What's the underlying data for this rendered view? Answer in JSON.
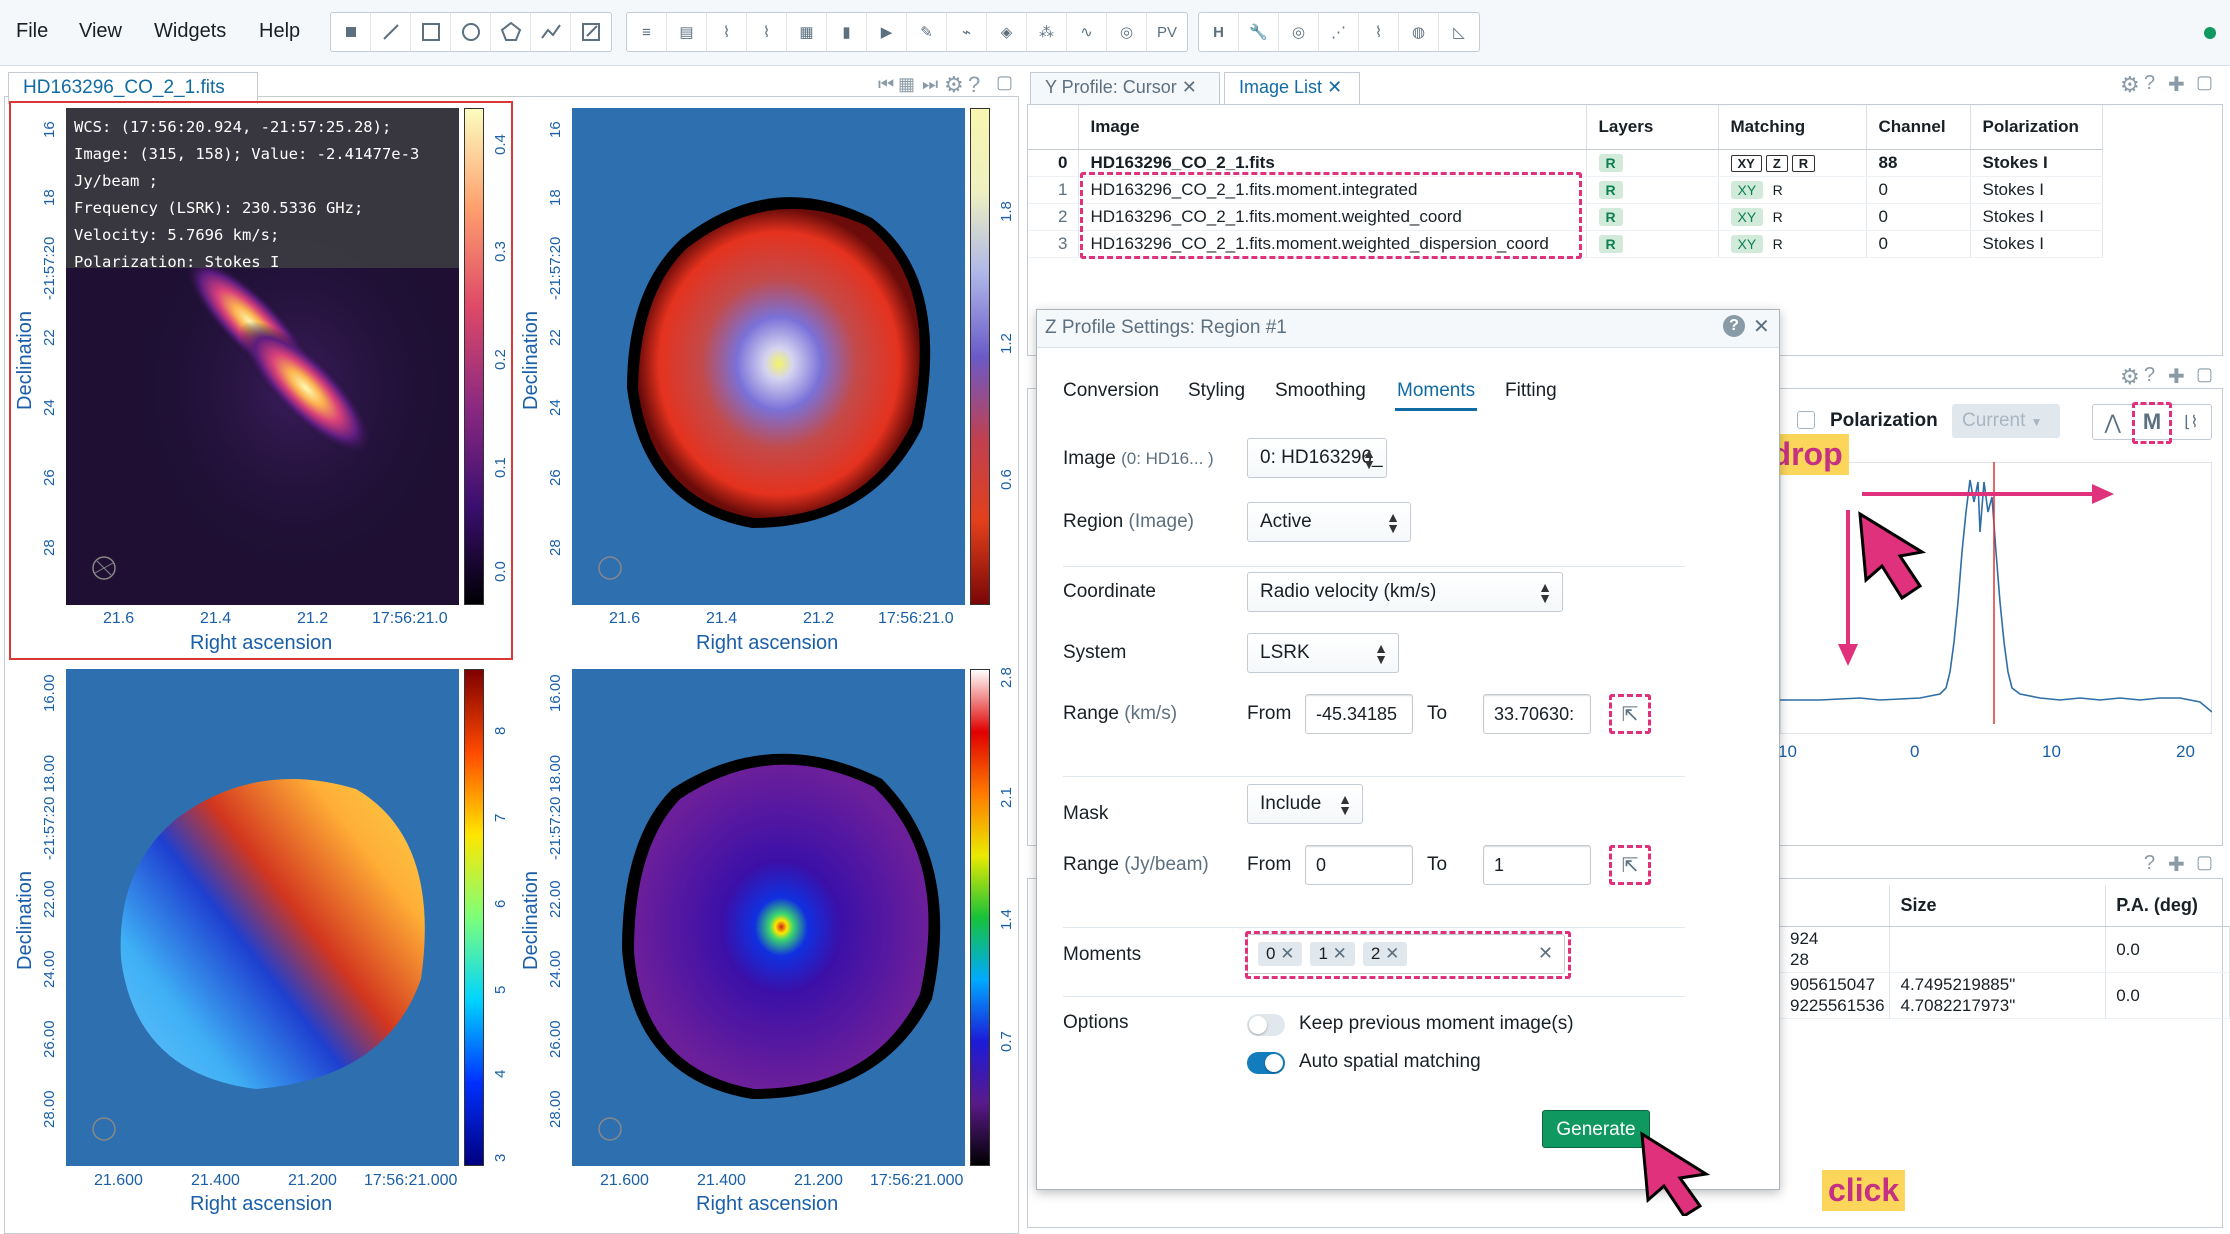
{
  "menu": {
    "file": "File",
    "view": "View",
    "widgets": "Widgets",
    "help": "Help"
  },
  "toolbar": {
    "pv_label": "PV",
    "hdr_label": "H"
  },
  "image_panel": {
    "tab_title": "HD163296_CO_2_1.fits",
    "cursor_info": {
      "line1": "WCS: (17:56:20.924, -21:57:25.28);",
      "line2": "Image: (315, 158); Value: -2.41477e-3",
      "line3": "Jy/beam ;",
      "line4": "Frequency (LSRK): 230.5336 GHz;",
      "line5": "Velocity: 5.7696 km/s;",
      "line6": "Polarization: Stokes I"
    },
    "views": [
      {
        "xlabel": "Right ascension",
        "ylabel": "Declination",
        "xticks": [
          "21.6",
          "21.4",
          "21.2",
          "17:56:21.0"
        ],
        "yticks": [
          "16",
          "18",
          "-21:57:20",
          "22",
          "24",
          "26",
          "28"
        ],
        "cbar_ticks": [
          "0.4",
          "0.3",
          "0.2",
          "0.1",
          "0.0"
        ]
      },
      {
        "xlabel": "Right ascension",
        "ylabel": "Declination",
        "xticks": [
          "21.6",
          "21.4",
          "21.2",
          "17:56:21.0"
        ],
        "yticks": [
          "16",
          "18",
          "-21:57:20",
          "22",
          "24",
          "26",
          "28"
        ],
        "cbar_ticks": [
          "1.8",
          "1.2",
          "0.6"
        ]
      },
      {
        "xlabel": "Right ascension",
        "ylabel": "Declination",
        "xticks": [
          "21.600",
          "21.400",
          "21.200",
          "17:56:21.000"
        ],
        "yticks": [
          "16.00",
          "-21:57:20 18.00",
          "22.00",
          "24.00",
          "26.00",
          "28.00"
        ],
        "cbar_ticks": [
          "8",
          "7",
          "6",
          "5",
          "4",
          "3"
        ]
      },
      {
        "xlabel": "Right ascension",
        "ylabel": "Declination",
        "xticks": [
          "21.600",
          "21.400",
          "21.200",
          "17:56:21.000"
        ],
        "yticks": [
          "16.00",
          "-21:57:20 18.00",
          "22.00",
          "24.00",
          "26.00",
          "28.00"
        ],
        "cbar_ticks": [
          "2.8",
          "2.1",
          "1.4",
          "0.7"
        ]
      }
    ]
  },
  "right_tabs": {
    "tab1": "Y Profile: Cursor",
    "tab2": "Image List"
  },
  "image_list": {
    "headers": [
      "Image",
      "Layers",
      "Matching",
      "Channel",
      "Polarization"
    ],
    "rows": [
      {
        "idx": "0",
        "name": "HD163296_CO_2_1.fits",
        "layer": "R",
        "match": [
          "XY",
          "Z",
          "R"
        ],
        "channel": "88",
        "pol": "Stokes I"
      },
      {
        "idx": "1",
        "name": "HD163296_CO_2_1.fits.moment.integrated",
        "layer": "R",
        "match": [
          "XY",
          "R"
        ],
        "channel": "0",
        "pol": "Stokes I"
      },
      {
        "idx": "2",
        "name": "HD163296_CO_2_1.fits.moment.weighted_coord",
        "layer": "R",
        "match": [
          "XY",
          "R"
        ],
        "channel": "0",
        "pol": "Stokes I"
      },
      {
        "idx": "3",
        "name": "HD163296_CO_2_1.fits.moment.weighted_dispersion_coord",
        "layer": "R",
        "match": [
          "XY",
          "R"
        ],
        "channel": "0",
        "pol": "Stokes I"
      }
    ]
  },
  "dialog": {
    "title": "Z Profile Settings: Region #1",
    "tabs": [
      "Conversion",
      "Styling",
      "Smoothing",
      "Moments",
      "Fitting"
    ],
    "active_tab": "Moments",
    "image_label": "Image",
    "image_sub": "(0: HD16...  )",
    "image_value": "0: HD163296_",
    "region_label": "Region",
    "region_sub": "(Image)",
    "region_value": "Active",
    "coord_label": "Coordinate",
    "coord_value": "Radio velocity (km/s)",
    "system_label": "System",
    "system_value": "LSRK",
    "range_label": "Range",
    "range_sub": "(km/s)",
    "from_label": "From",
    "to_label": "To",
    "range_from": "-45.34185",
    "range_to": "33.70630:",
    "mask_label": "Mask",
    "mask_value": "Include",
    "mrange_label": "Range",
    "mrange_sub": "(Jy/beam)",
    "mrange_from": "0",
    "mrange_to": "1",
    "moments_label": "Moments",
    "moments": [
      "0",
      "1",
      "2"
    ],
    "options_label": "Options",
    "opt_keep": "Keep previous moment image(s)",
    "opt_auto": "Auto spatial matching",
    "generate": "Generate"
  },
  "profile": {
    "pol_label": "Polarization",
    "pol_value": "Current",
    "m_label": "M",
    "xticks": [
      "10",
      "0",
      "10",
      "20"
    ]
  },
  "region_table": {
    "headers": [
      "Size",
      "P.A. (deg)"
    ],
    "rows": [
      {
        "c0a": "924",
        "c0b": "28",
        "size": "",
        "pa": "0.0"
      },
      {
        "c0a": "905615047",
        "c0b": "9225561536",
        "size_a": "4.7495219885\"",
        "size_b": "4.7082217973\"",
        "pa": "0.0"
      }
    ]
  },
  "annotations": {
    "drag": "drag-and-drop",
    "click": "click"
  },
  "colors": {
    "accent": "#106ba3",
    "annot": "#e0317d",
    "generate": "#0f9960"
  }
}
